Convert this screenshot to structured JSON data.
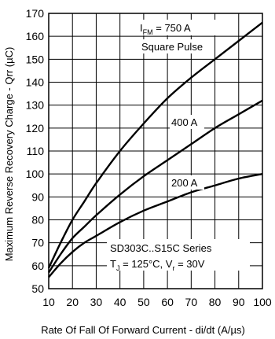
{
  "chart_data": {
    "type": "line",
    "title": "",
    "xlabel": "Rate Of Fall Of Forward Current - di/dt (A/µs)",
    "ylabel": "Maximum Reverse Recovery Charge - Qrr (µC)",
    "xlim": [
      10,
      100
    ],
    "ylim": [
      50,
      170
    ],
    "xticks": [
      "10",
      "20",
      "30",
      "40",
      "50",
      "60",
      "70",
      "80",
      "90",
      "100"
    ],
    "yticks": [
      "50",
      "60",
      "70",
      "80",
      "90",
      "100",
      "110",
      "120",
      "130",
      "140",
      "150",
      "160",
      "170"
    ],
    "grid": true,
    "series": [
      {
        "name": "IFM = 750 A",
        "x": [
          10,
          15,
          20,
          25,
          30,
          40,
          50,
          60,
          70,
          80,
          90,
          100
        ],
        "y": [
          59,
          70,
          80,
          88,
          96,
          110,
          122,
          133,
          142,
          150,
          158,
          166
        ]
      },
      {
        "name": "400 A",
        "x": [
          10,
          15,
          20,
          25,
          30,
          40,
          50,
          60,
          70,
          80,
          90,
          100
        ],
        "y": [
          57,
          65,
          72,
          77,
          82,
          91,
          99,
          106,
          113,
          120,
          126,
          132
        ]
      },
      {
        "name": "200 A",
        "x": [
          10,
          15,
          20,
          25,
          30,
          40,
          50,
          60,
          70,
          80,
          90,
          100
        ],
        "y": [
          55,
          61,
          66,
          70,
          73,
          79,
          84,
          88,
          92,
          95,
          98,
          100
        ]
      }
    ],
    "annotations": {
      "series_label_750_main": "I",
      "series_label_750_sub": "FM",
      "series_label_750_value": " = 750 A",
      "square_pulse": "Square Pulse",
      "label_400": "400 A",
      "label_200": "200 A",
      "series_box_line1": "SD303C..S15C Series",
      "series_box_line2_a": "T",
      "series_box_line2_sub": "J",
      "series_box_line2_b": " = 125°C, V",
      "series_box_line2_sub2": "r",
      "series_box_line2_c": " = 30V"
    }
  }
}
